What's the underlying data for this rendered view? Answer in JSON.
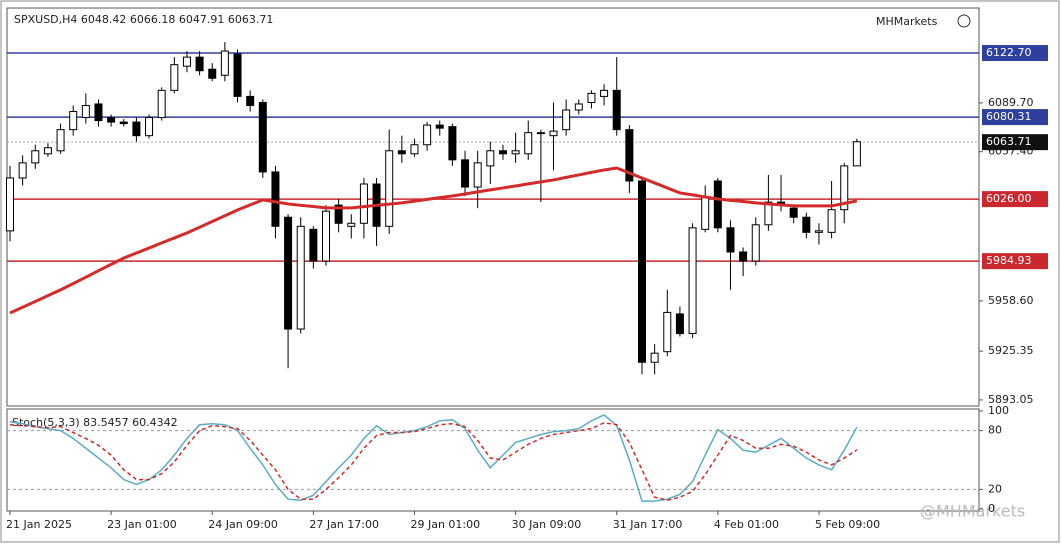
{
  "brand": "MHMarkets",
  "watermark": "@MHMarkets",
  "chart_data": [
    {
      "type": "candlestick",
      "title": "SPXUSD,H4  6048.42 6066.18 6047.91 6063.71",
      "categories": [
        "21 Jan 2025",
        null,
        null,
        null,
        null,
        null,
        null,
        null,
        "23 Jan 01:00",
        null,
        null,
        null,
        null,
        null,
        null,
        null,
        "24 Jan 09:00",
        null,
        null,
        null,
        null,
        null,
        null,
        null,
        "27 Jan 17:00",
        null,
        null,
        null,
        null,
        null,
        null,
        null,
        "29 Jan 01:00",
        null,
        null,
        null,
        null,
        null,
        null,
        null,
        "30 Jan 09:00",
        null,
        null,
        null,
        null,
        null,
        null,
        null,
        "31 Jan 17:00",
        null,
        null,
        null,
        null,
        null,
        null,
        null,
        "4 Feb 01:00",
        null,
        null,
        null,
        null,
        null,
        null,
        null,
        "5 Feb 09:00",
        null,
        null,
        null
      ],
      "open": [
        6005,
        6040,
        6050,
        6056,
        6058,
        6072,
        6080,
        6089,
        6080,
        6077,
        6077,
        6068,
        6080,
        6098,
        6114,
        6120,
        6112,
        6108,
        6122,
        6094,
        6090,
        6044,
        6014,
        5940,
        6006,
        5985,
        6022,
        6008,
        6010,
        6036,
        6008,
        6058,
        6056,
        6062,
        6075,
        6074,
        6052,
        6034,
        6048,
        6058,
        6056,
        6056,
        6070,
        6068,
        6072,
        6085,
        6090,
        6094,
        6098,
        6072,
        6038,
        5918,
        5925,
        5950,
        5937,
        6006,
        6038,
        6007,
        5991,
        5985,
        6009,
        6024,
        6020,
        6014,
        6004,
        6004,
        6019,
        6048
      ],
      "high": [
        6048,
        6055,
        6062,
        6063,
        6076,
        6088,
        6096,
        6092,
        6082,
        6079,
        6080,
        6082,
        6100,
        6120,
        6124,
        6124,
        6116,
        6130,
        6125,
        6098,
        6092,
        6048,
        6016,
        6014,
        6008,
        6022,
        6026,
        6016,
        6040,
        6040,
        6072,
        6068,
        6066,
        6077,
        6078,
        6076,
        6058,
        6058,
        6064,
        6062,
        6070,
        6078,
        6072,
        6090,
        6092,
        6092,
        6098,
        6102,
        6120,
        6075,
        6040,
        5930,
        5966,
        5955,
        6010,
        6035,
        6040,
        6012,
        5994,
        6014,
        6042,
        6042,
        6022,
        6017,
        6010,
        6038,
        6050,
        6066
      ],
      "low": [
        5998,
        6035,
        6046,
        6054,
        6056,
        6068,
        6076,
        6074,
        6074,
        6074,
        6064,
        6066,
        6078,
        6096,
        6110,
        6108,
        6104,
        6104,
        6090,
        6084,
        6040,
        6000,
        5914,
        5937,
        5980,
        5982,
        6004,
        6000,
        6000,
        5995,
        6003,
        6050,
        6054,
        6058,
        6068,
        6048,
        6028,
        6020,
        6036,
        6052,
        6050,
        6052,
        6024,
        6045,
        6068,
        6082,
        6086,
        6088,
        6068,
        6030,
        5910,
        5910,
        5922,
        5935,
        5934,
        6004,
        6004,
        5966,
        5975,
        5982,
        6005,
        6018,
        6010,
        6000,
        5996,
        6000,
        6010,
        6048
      ],
      "close": [
        6040,
        6050,
        6058,
        6060,
        6072,
        6084,
        6088,
        6078,
        6077,
        6076,
        6068,
        6080,
        6098,
        6115,
        6120,
        6111,
        6106,
        6124,
        6094,
        6088,
        6044,
        6008,
        5940,
        6008,
        5985,
        6018,
        6010,
        6010,
        6036,
        6008,
        6058,
        6056,
        6062,
        6075,
        6073,
        6052,
        6034,
        6050,
        6058,
        6056,
        6058,
        6070,
        6070,
        6071,
        6085,
        6089,
        6096,
        6098,
        6072,
        6038,
        5918,
        5924,
        5951,
        5937,
        6007,
        6027,
        6007,
        5991,
        5985,
        6009,
        6024,
        6022,
        6014,
        6004,
        6005,
        6019,
        6048,
        6064
      ],
      "ma": {
        "color": "#d42a2a",
        "values": [
          5950.6,
          5954.4,
          5958.2,
          5962.1,
          5965.9,
          5970.1,
          5974.3,
          5978.6,
          5982.8,
          5987.0,
          5990.3,
          5993.6,
          5997.0,
          6000.3,
          6003.6,
          6007.4,
          6011.2,
          6015.0,
          6018.8,
          6022.2,
          6025.5,
          6024.2,
          6022.8,
          6021.9,
          6021.1,
          6020.2,
          6020.2,
          6020.2,
          6021.0,
          6021.9,
          6022.7,
          6023.5,
          6024.7,
          6025.8,
          6027.0,
          6028.1,
          6029.4,
          6030.8,
          6032.1,
          6033.4,
          6034.7,
          6036.1,
          6037.4,
          6038.7,
          6040.4,
          6042.0,
          6043.7,
          6045.3,
          6046.6,
          6043.3,
          6040.0,
          6036.7,
          6033.4,
          6030.1,
          6028.8,
          6027.4,
          6026.1,
          6025.2,
          6024.4,
          6023.5,
          6022.8,
          6022.2,
          6021.5,
          6021.5,
          6021.5,
          6021.5,
          6023.2,
          6024.8
        ]
      },
      "levels": [
        {
          "value": 6122.7,
          "label": "6122.70",
          "color": "#2e3f9e"
        },
        {
          "value": 6080.31,
          "label": "6080.31",
          "color": "#2e3f9e"
        },
        {
          "value": 6063.71,
          "label": "6063.71",
          "color": "#111111",
          "dotted": true
        },
        {
          "value": 6026,
          "label": "6026.00",
          "color": "#c8282e"
        },
        {
          "value": 5984.93,
          "label": "5984.93",
          "color": "#c8282e"
        }
      ],
      "ylim": [
        5889.7,
        6151.2
      ],
      "yticks": [
        {
          "value": 6089.7,
          "label": "6089.70"
        },
        {
          "value": 6057.4,
          "label": "6057.40"
        },
        {
          "value": 5958.6,
          "label": "5958.60"
        },
        5925.35,
        5893.05
      ]
    },
    {
      "type": "line",
      "title": "Stoch(5,3,3) 83.5457 60.4342",
      "ylim": [
        0,
        100
      ],
      "yticks": [
        100,
        80,
        20,
        0
      ],
      "hlines": [
        80,
        20
      ],
      "series": [
        {
          "color": "#5aaec4",
          "values": [
            89,
            87,
            84,
            82,
            80,
            72,
            62,
            52,
            42,
            30,
            25,
            30,
            40,
            55,
            72,
            86,
            87,
            86,
            80,
            62,
            45,
            25,
            10,
            9,
            14,
            28,
            42,
            55,
            72,
            85,
            76,
            78,
            80,
            84,
            90,
            91,
            82,
            60,
            42,
            55,
            68,
            72,
            76,
            79,
            80,
            82,
            90,
            96,
            85,
            50,
            8,
            8,
            10,
            15,
            28,
            55,
            81,
            72,
            60,
            58,
            65,
            72,
            62,
            52,
            45,
            40,
            60,
            83.5457
          ]
        },
        {
          "color": "#d02a2a",
          "dashed": true,
          "values": [
            86,
            85,
            84,
            83,
            84,
            78,
            72,
            65,
            55,
            40,
            30,
            30,
            36,
            48,
            65,
            80,
            85,
            84,
            82,
            70,
            55,
            40,
            20,
            10,
            10,
            20,
            32,
            45,
            62,
            75,
            78,
            78,
            79,
            82,
            86,
            87,
            84,
            70,
            52,
            50,
            58,
            66,
            72,
            76,
            78,
            80,
            82,
            88,
            86,
            68,
            40,
            12,
            9,
            12,
            18,
            35,
            55,
            75,
            70,
            62,
            62,
            66,
            64,
            58,
            50,
            45,
            52,
            60.4342
          ]
        }
      ]
    }
  ]
}
